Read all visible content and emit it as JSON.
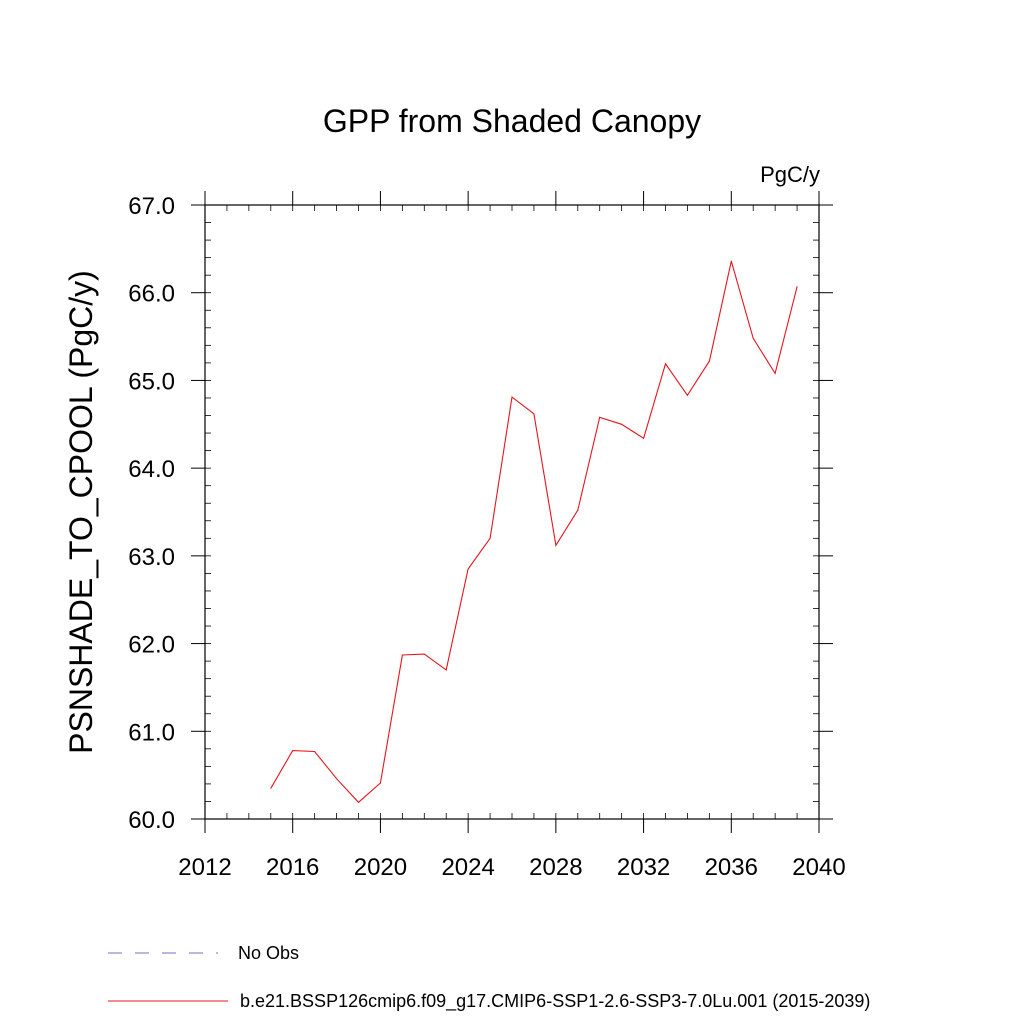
{
  "chart_data": {
    "type": "line",
    "title": "GPP from Shaded Canopy",
    "units": "PgC/y",
    "xlabel": "",
    "ylabel": "PSNSHADE_TO_CPOOL  (PgC/y)",
    "xlim": [
      2012,
      2040
    ],
    "ylim": [
      60.0,
      67.0
    ],
    "xticks": [
      2012,
      2016,
      2020,
      2024,
      2028,
      2032,
      2036,
      2040
    ],
    "xtick_labels": [
      "2012",
      "2016",
      "2020",
      "2024",
      "2028",
      "2032",
      "2036",
      "2040"
    ],
    "yticks": [
      60.0,
      61.0,
      62.0,
      63.0,
      64.0,
      65.0,
      66.0,
      67.0
    ],
    "ytick_labels": [
      "60.0",
      "61.0",
      "62.0",
      "63.0",
      "64.0",
      "65.0",
      "66.0",
      "67.0"
    ],
    "series": [
      {
        "name": "b.e21.BSSP126cmip6.f09_g17.CMIP6-SSP1-2.6-SSP3-7.0Lu.001 (2015-2039)",
        "color": "#e8141b",
        "x": [
          2015,
          2016,
          2017,
          2018,
          2019,
          2020,
          2021,
          2022,
          2023,
          2024,
          2025,
          2026,
          2027,
          2028,
          2029,
          2030,
          2031,
          2032,
          2033,
          2034,
          2035,
          2036,
          2037,
          2038,
          2039
        ],
        "values": [
          60.35,
          60.78,
          60.77,
          60.46,
          60.19,
          60.41,
          61.87,
          61.88,
          61.7,
          62.85,
          63.2,
          64.81,
          64.62,
          63.12,
          63.52,
          64.58,
          64.5,
          64.34,
          65.19,
          64.83,
          65.22,
          66.36,
          65.48,
          65.08,
          66.07
        ]
      }
    ],
    "legend": [
      {
        "label": "No Obs",
        "color": "#7b6fc4",
        "style": "dashed"
      },
      {
        "label": "b.e21.BSSP126cmip6.f09_g17.CMIP6-SSP1-2.6-SSP3-7.0Lu.001 (2015-2039)",
        "color": "#e8141b",
        "style": "solid"
      }
    ],
    "legend_position": "bottom-left"
  }
}
